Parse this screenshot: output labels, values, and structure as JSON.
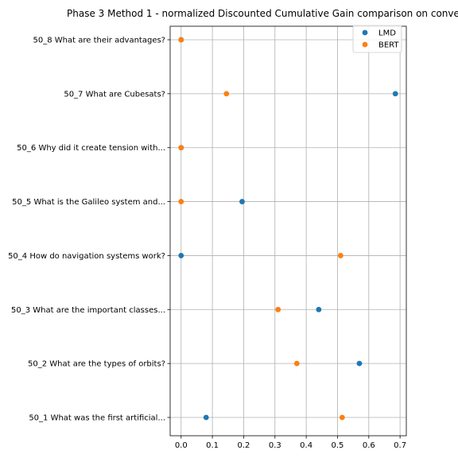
{
  "chart_data": {
    "type": "scatter",
    "title": "Phase 3 Method 1 - normalized Discounted Cumulative Gain comparison on conve",
    "xlabel": "",
    "ylabel": "",
    "xlim": [
      -0.035,
      0.72
    ],
    "xticks": [
      0.0,
      0.1,
      0.2,
      0.3,
      0.4,
      0.5,
      0.6,
      0.7
    ],
    "xtick_labels": [
      "0.0",
      "0.1",
      "0.2",
      "0.3",
      "0.4",
      "0.5",
      "0.6",
      "0.7"
    ],
    "categories": [
      "50_1 What was the first artificial...",
      "50_2 What are the types of orbits?",
      "50_3 What are the important classes...",
      "50_4 How do navigation systems work?",
      "50_5 What is the Galileo system and...",
      "50_6 Why did it create tension with...",
      "50_7 What are Cubesats?",
      "50_8 What are their advantages?"
    ],
    "series": [
      {
        "name": "LMD",
        "color": "#1f77b4",
        "values": [
          0.08,
          0.57,
          0.44,
          0.0,
          0.195,
          0.0,
          0.685,
          0.0
        ]
      },
      {
        "name": "BERT",
        "color": "#ff7f0e",
        "values": [
          0.515,
          0.37,
          0.31,
          0.51,
          0.0,
          0.0,
          0.145,
          0.0
        ]
      }
    ],
    "grid": true,
    "legend_position": "top-right"
  }
}
